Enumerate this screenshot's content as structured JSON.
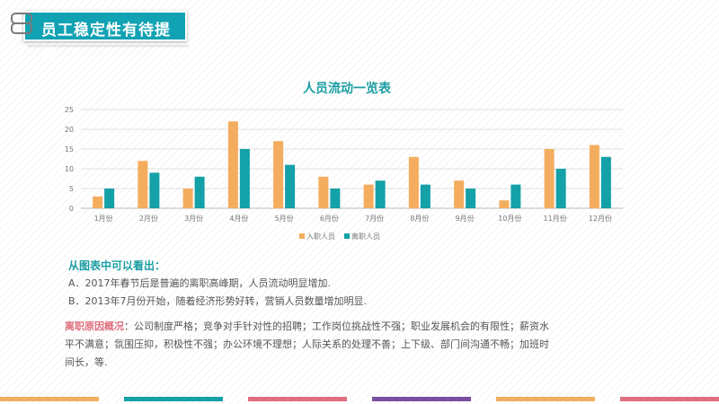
{
  "header": {
    "title": "员工稳定性有待提高"
  },
  "chart_data": {
    "type": "bar",
    "title": "人员流动一览表",
    "categories": [
      "1月份",
      "2月份",
      "3月份",
      "4月份",
      "5月份",
      "6月份",
      "7月份",
      "8月份",
      "9月份",
      "10月份",
      "11月份",
      "12月份"
    ],
    "series": [
      {
        "name": "入职人员",
        "values": [
          3,
          12,
          5,
          22,
          17,
          8,
          6,
          13,
          7,
          2,
          15,
          16
        ]
      },
      {
        "name": "离职人员",
        "values": [
          5,
          9,
          8,
          15,
          11,
          5,
          7,
          6,
          5,
          6,
          10,
          13
        ]
      }
    ],
    "y_ticks": [
      0,
      5,
      10,
      15,
      20,
      25
    ],
    "ylim": [
      0,
      25
    ],
    "grid": true,
    "legend": "bottom",
    "colors": [
      "#f4ad5e",
      "#14a1a7"
    ]
  },
  "conclusion": {
    "title": "从图表中可以看出：",
    "lines": [
      "A．2017年春节后是普遍的离职高峰期，人员流动明显增加.",
      "B．2013年7月份开始，随着经济形势好转，营销人员数量增加明显."
    ]
  },
  "reason": {
    "title": "离职原因概况",
    "text": "：公司制度严格；竞争对手针对性的招聘；工作岗位挑战性不强；职业发展机会的有限性；薪资水平不满意；氛围压抑，积极性不强；办公环境不理想；人际关系的处理不善；上下级、部门间沟通不畅；加班时间长，等."
  },
  "bottom_bars": [
    "#f4ad5e",
    "#14a1a7",
    "#e06f7d",
    "#7a4fa0",
    "#f4ad5e",
    "#e06f7d"
  ]
}
